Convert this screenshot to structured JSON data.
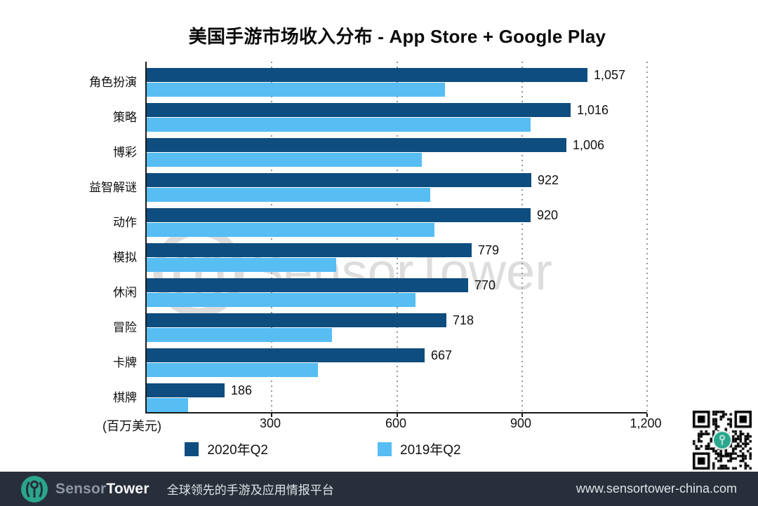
{
  "title": "美国手游市场收入分布 - App Store + Google Play",
  "chart_data": {
    "type": "bar",
    "orientation": "horizontal",
    "title": "美国手游市场收入分布 - App Store + Google Play",
    "categories": [
      "角色扮演",
      "策略",
      "博彩",
      "益智解谜",
      "动作",
      "模拟",
      "休闲",
      "冒险",
      "卡牌",
      "棋牌"
    ],
    "series": [
      {
        "name": "2020年Q2",
        "color": "#0e4d7f",
        "values": [
          1057,
          1016,
          1006,
          922,
          920,
          779,
          770,
          718,
          667,
          186
        ],
        "value_labels": [
          "1,057",
          "1,016",
          "1,006",
          "922",
          "920",
          "779",
          "770",
          "718",
          "667",
          "186"
        ]
      },
      {
        "name": "2019年Q2",
        "color": "#57bdf3",
        "values": [
          715,
          920,
          660,
          680,
          690,
          455,
          645,
          445,
          410,
          100
        ],
        "note": "bars unlabeled in chart; values estimated from bar lengths vs gridlines"
      }
    ],
    "xlabel": "(百万美元)",
    "xlim": [
      0,
      1200
    ],
    "xticks": [
      300,
      600,
      900,
      1200
    ],
    "xtick_labels": [
      "300",
      "600",
      "900",
      "1,200"
    ],
    "grid": "vertical-dotted",
    "legend_position": "bottom-center"
  },
  "unit_label": "(百万美元)",
  "watermark": {
    "text": "SensorTower"
  },
  "qr": {
    "description": "qr-code-with-sensortower-logo-center"
  },
  "footer": {
    "brand_sensor": "Sensor",
    "brand_tower": "Tower",
    "tagline": "全球领先的手游及应用情报平台",
    "url": "www.sensortower-china.com"
  },
  "colors": {
    "bar_2020": "#0e4d7f",
    "bar_2019": "#57bdf3",
    "footer_bg": "#282e3a",
    "logo_teal": "#2aa68c",
    "watermark_gray": "#dcdcdc",
    "gridline": "#8f979e",
    "axis": "#1a1a1a",
    "text": "#111111"
  }
}
